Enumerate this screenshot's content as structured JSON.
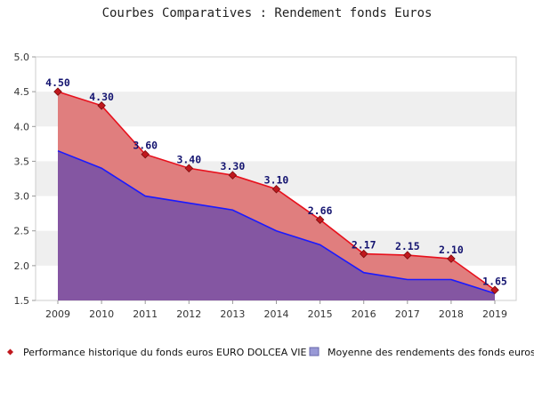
{
  "chart_data": {
    "type": "area",
    "title": "Courbes Comparatives : Rendement fonds Euros",
    "categories": [
      "2009",
      "2010",
      "2011",
      "2012",
      "2013",
      "2014",
      "2015",
      "2016",
      "2017",
      "2018",
      "2019"
    ],
    "ylim": [
      1.5,
      5.0
    ],
    "y_ticks": [
      "1.5",
      "2.0",
      "2.5",
      "3.0",
      "3.5",
      "4.0",
      "4.5",
      "5.0"
    ],
    "grid": "horizontal bands",
    "legend_position": "bottom",
    "series": [
      {
        "name": "Performance historique du fonds euros EURO DOLCEA VIE",
        "values": [
          4.5,
          4.3,
          3.6,
          3.4,
          3.3,
          3.1,
          2.66,
          2.17,
          2.15,
          2.1,
          1.65
        ],
        "labels": [
          "4.50",
          "4.30",
          "3.60",
          "3.40",
          "3.30",
          "3.10",
          "2.66",
          "2.17",
          "2.15",
          "2.10",
          "1.65"
        ],
        "line_color": "#e8101c",
        "fill_color": "#e07e7e",
        "marker_color": "#c0181e"
      },
      {
        "name": "Moyenne des rendements des fonds euros",
        "values": [
          3.65,
          3.4,
          3.0,
          2.9,
          2.8,
          2.5,
          2.3,
          1.9,
          1.8,
          1.8,
          1.6
        ],
        "line_color": "#1a1aff",
        "fill_color": "#8456a2"
      }
    ]
  }
}
